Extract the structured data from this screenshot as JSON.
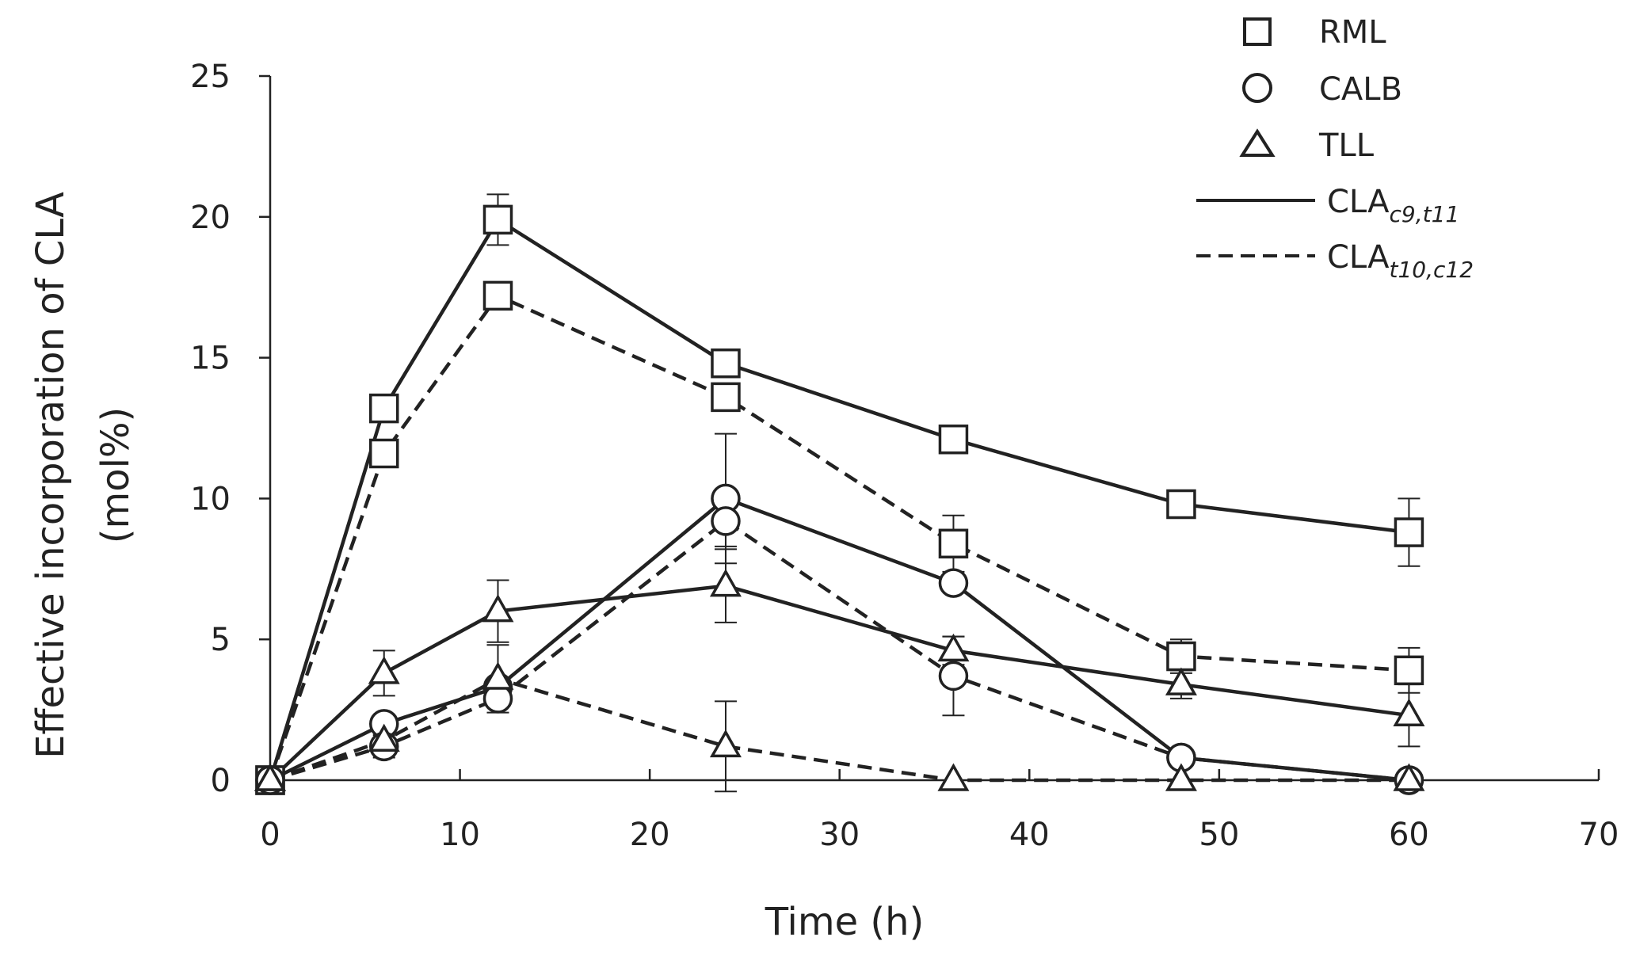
{
  "chart_data": {
    "type": "line",
    "title": "",
    "xlabel": "Time (h)",
    "ylabel_line1": "Effective incorporation of CLA",
    "ylabel_line2": "(mol%)",
    "xlim": [
      0,
      70
    ],
    "ylim": [
      0,
      25
    ],
    "xticks": [
      0,
      10,
      20,
      30,
      40,
      50,
      60,
      70
    ],
    "yticks": [
      0,
      5,
      10,
      15,
      20,
      25
    ],
    "grid": false,
    "legend": {
      "position": "top-right",
      "markers": [
        {
          "marker": "square",
          "label": "RML"
        },
        {
          "marker": "circle",
          "label": "CALB"
        },
        {
          "marker": "triangle",
          "label": "TLL"
        }
      ],
      "lines": [
        {
          "style": "solid",
          "label": "CLA",
          "subscript": "c9,t11"
        },
        {
          "style": "dashed",
          "label": "CLA",
          "subscript": "t10,c12"
        }
      ]
    },
    "series": [
      {
        "name": "RML CLAc9,t11",
        "marker": "square",
        "line": "solid",
        "x": [
          0,
          6,
          12,
          24,
          36,
          48,
          60
        ],
        "y": [
          0,
          13.2,
          19.9,
          14.8,
          12.1,
          9.8,
          8.8
        ],
        "err": [
          0,
          0,
          0.9,
          0,
          0,
          0,
          1.2
        ]
      },
      {
        "name": "RML CLAt10,c12",
        "marker": "square",
        "line": "dashed",
        "x": [
          0,
          6,
          12,
          24,
          36,
          48,
          60
        ],
        "y": [
          0,
          11.6,
          17.2,
          13.6,
          8.4,
          4.4,
          3.9
        ],
        "err": [
          0,
          0,
          0,
          0,
          1.0,
          0.6,
          0.8
        ]
      },
      {
        "name": "CALB CLAc9,t11",
        "marker": "circle",
        "line": "solid",
        "x": [
          0,
          6,
          12,
          24,
          36,
          48,
          60
        ],
        "y": [
          0,
          2.0,
          3.3,
          10.0,
          7.0,
          0.8,
          0
        ],
        "err": [
          0,
          0,
          0,
          2.3,
          0,
          0,
          0
        ]
      },
      {
        "name": "CALB CLAt10,c12",
        "marker": "circle",
        "line": "dashed",
        "x": [
          0,
          6,
          12,
          24,
          36,
          48,
          60
        ],
        "y": [
          0,
          1.2,
          2.9,
          9.2,
          3.7,
          0.8,
          0
        ],
        "err": [
          0,
          0.4,
          0,
          0.9,
          1.4,
          0,
          0
        ]
      },
      {
        "name": "TLL CLAc9,t11",
        "marker": "triangle",
        "line": "solid",
        "x": [
          0,
          6,
          12,
          24,
          36,
          48,
          60
        ],
        "y": [
          0,
          3.8,
          6.0,
          6.9,
          4.6,
          3.4,
          2.3
        ],
        "err": [
          0,
          0.8,
          1.1,
          1.3,
          0.5,
          0.5,
          1.1
        ]
      },
      {
        "name": "TLL CLAt10,c12",
        "marker": "triangle",
        "line": "dashed",
        "x": [
          0,
          6,
          12,
          24,
          36,
          48,
          60
        ],
        "y": [
          0,
          1.4,
          3.6,
          1.2,
          0,
          0,
          0
        ],
        "err": [
          0,
          0,
          1.2,
          1.6,
          0,
          0,
          0
        ]
      }
    ]
  },
  "colors": {
    "ink": "#222222",
    "background": "#ffffff"
  }
}
